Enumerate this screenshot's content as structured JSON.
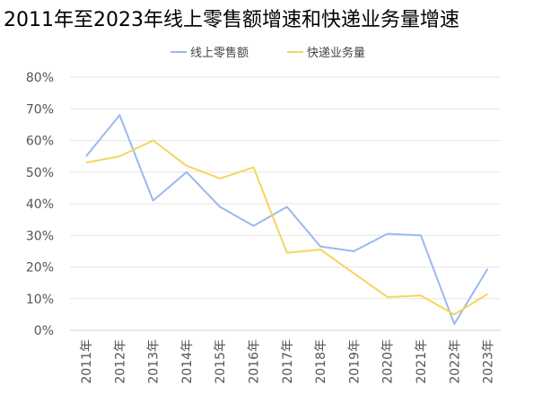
{
  "chart_data": {
    "type": "line",
    "title": "2011年至2023年线上零售额增速和快递业务量增速",
    "categories": [
      "2011年",
      "2012年",
      "2013年",
      "2014年",
      "2015年",
      "2016年",
      "2017年",
      "2018年",
      "2019年",
      "2020年",
      "2021年",
      "2022年",
      "2023年"
    ],
    "y_ticks": [
      "0%",
      "10%",
      "20%",
      "30%",
      "40%",
      "50%",
      "60%",
      "70%",
      "80%"
    ],
    "ylim": [
      0,
      80
    ],
    "grid": true,
    "legend_position": "top",
    "series": [
      {
        "name": "线上零售额",
        "color": "#9ab9ee",
        "values": [
          55,
          68,
          41,
          50,
          39,
          33,
          39,
          26.5,
          25,
          30.5,
          30,
          2,
          19.5
        ]
      },
      {
        "name": "快递业务量",
        "color": "#f5d55c",
        "values": [
          53,
          55,
          60,
          52,
          48,
          51.5,
          24.5,
          25.5,
          18,
          10.5,
          11,
          5,
          11.5
        ]
      }
    ]
  }
}
